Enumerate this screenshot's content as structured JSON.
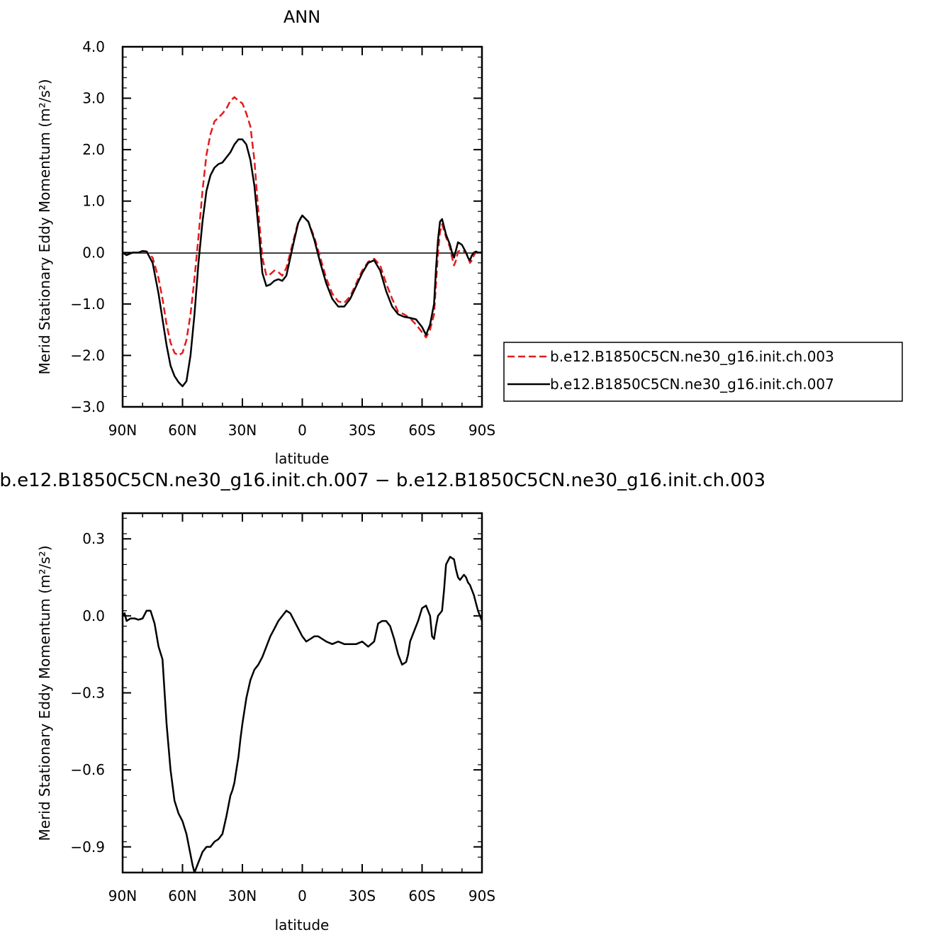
{
  "chart_data": [
    {
      "type": "line",
      "title": "ANN",
      "xlabel": "latitude",
      "ylabel": "Merid Stationary Eddy Momentum (m²/s²)",
      "xlim": [
        90,
        -90
      ],
      "ylim": [
        -3.0,
        4.0
      ],
      "x_ticks": [
        {
          "value": 90,
          "label": "90N"
        },
        {
          "value": 60,
          "label": "60N"
        },
        {
          "value": 30,
          "label": "30N"
        },
        {
          "value": 0,
          "label": "0"
        },
        {
          "value": -30,
          "label": "30S"
        },
        {
          "value": -60,
          "label": "60S"
        },
        {
          "value": -90,
          "label": "90S"
        }
      ],
      "y_ticks": [
        {
          "value": 4.0,
          "label": "4.0"
        },
        {
          "value": 3.0,
          "label": "3.0"
        },
        {
          "value": 2.0,
          "label": "2.0"
        },
        {
          "value": 1.0,
          "label": "1.0"
        },
        {
          "value": 0.0,
          "label": "0.0"
        },
        {
          "value": -1.0,
          "label": "−1.0"
        },
        {
          "value": -2.0,
          "label": "−2.0"
        },
        {
          "value": -3.0,
          "label": "−3.0"
        }
      ],
      "legend": {
        "placement": "right"
      },
      "series": [
        {
          "name": "b.e12.B1850C5CN.ne30_g16.init.ch.003",
          "color": "#e41a1c",
          "dash": "dashed",
          "x": [
            90,
            88,
            85,
            82,
            80,
            78,
            75,
            72,
            70,
            68,
            66,
            64,
            62,
            60,
            58,
            56,
            54,
            52,
            50,
            48,
            46,
            44,
            42,
            40,
            38,
            36,
            34,
            32,
            30,
            28,
            26,
            24,
            22,
            20,
            18,
            16,
            14,
            12,
            10,
            8,
            6,
            4,
            2,
            0,
            -3,
            -6,
            -9,
            -12,
            -15,
            -18,
            -21,
            -24,
            -27,
            -30,
            -33,
            -36,
            -39,
            -42,
            -45,
            -48,
            -51,
            -54,
            -57,
            -60,
            -62,
            -64,
            -66,
            -67,
            -68,
            -69,
            -70,
            -72,
            -74,
            -75,
            -76,
            -77,
            -78,
            -80,
            -82,
            -83,
            -84,
            -85,
            -86,
            -87,
            -88,
            -89,
            -90
          ],
          "y": [
            0.0,
            -0.05,
            0.0,
            0.0,
            0.02,
            0.02,
            -0.1,
            -0.5,
            -0.9,
            -1.4,
            -1.75,
            -1.95,
            -2.0,
            -1.95,
            -1.7,
            -1.2,
            -0.5,
            0.3,
            1.2,
            1.9,
            2.3,
            2.55,
            2.62,
            2.7,
            2.8,
            2.95,
            3.02,
            2.95,
            2.9,
            2.7,
            2.45,
            1.8,
            0.8,
            -0.1,
            -0.45,
            -0.42,
            -0.35,
            -0.38,
            -0.45,
            -0.3,
            0.0,
            0.3,
            0.6,
            0.72,
            0.6,
            0.3,
            -0.1,
            -0.5,
            -0.8,
            -0.95,
            -0.98,
            -0.85,
            -0.6,
            -0.35,
            -0.18,
            -0.12,
            -0.25,
            -0.6,
            -0.9,
            -1.15,
            -1.2,
            -1.28,
            -1.4,
            -1.55,
            -1.65,
            -1.5,
            -1.2,
            -0.6,
            0.0,
            0.4,
            0.55,
            0.3,
            0.1,
            -0.1,
            -0.25,
            -0.15,
            0.02,
            0.05,
            0.0,
            -0.1,
            -0.2,
            -0.15,
            -0.05,
            0.0,
            0.02,
            0.0,
            0.0
          ]
        },
        {
          "name": "b.e12.B1850C5CN.ne30_g16.init.ch.007",
          "color": "#000000",
          "dash": "solid",
          "x": [
            90,
            88,
            85,
            82,
            80,
            78,
            75,
            72,
            70,
            68,
            66,
            64,
            62,
            60,
            58,
            56,
            54,
            52,
            50,
            48,
            46,
            44,
            42,
            40,
            38,
            36,
            34,
            32,
            30,
            28,
            26,
            24,
            22,
            20,
            18,
            16,
            14,
            12,
            10,
            8,
            6,
            4,
            2,
            0,
            -3,
            -6,
            -9,
            -12,
            -15,
            -18,
            -21,
            -24,
            -27,
            -30,
            -33,
            -36,
            -39,
            -42,
            -45,
            -48,
            -51,
            -54,
            -57,
            -60,
            -62,
            -64,
            -66,
            -67,
            -68,
            -69,
            -70,
            -72,
            -74,
            -75,
            -76,
            -77,
            -78,
            -80,
            -82,
            -83,
            -84,
            -85,
            -86,
            -87,
            -88,
            -89,
            -90
          ],
          "y": [
            0.0,
            -0.05,
            0.0,
            0.0,
            0.03,
            0.02,
            -0.2,
            -0.8,
            -1.3,
            -1.8,
            -2.2,
            -2.4,
            -2.52,
            -2.6,
            -2.5,
            -2.0,
            -1.2,
            -0.2,
            0.6,
            1.2,
            1.5,
            1.65,
            1.72,
            1.75,
            1.85,
            1.95,
            2.1,
            2.2,
            2.2,
            2.1,
            1.8,
            1.3,
            0.5,
            -0.4,
            -0.65,
            -0.62,
            -0.55,
            -0.52,
            -0.55,
            -0.45,
            -0.1,
            0.25,
            0.58,
            0.72,
            0.6,
            0.25,
            -0.2,
            -0.6,
            -0.9,
            -1.05,
            -1.05,
            -0.9,
            -0.65,
            -0.4,
            -0.2,
            -0.15,
            -0.35,
            -0.75,
            -1.05,
            -1.2,
            -1.25,
            -1.27,
            -1.3,
            -1.45,
            -1.6,
            -1.4,
            -1.0,
            -0.3,
            0.25,
            0.6,
            0.65,
            0.35,
            0.15,
            0.0,
            -0.1,
            0.05,
            0.2,
            0.15,
            0.0,
            -0.1,
            -0.15,
            -0.05,
            0.0,
            0.02,
            0.0,
            0.0,
            0.0
          ]
        }
      ]
    },
    {
      "type": "line",
      "title": "b.e12.B1850C5CN.ne30_g16.init.ch.007 − b.e12.B1850C5CN.ne30_g16.init.ch.003",
      "xlabel": "latitude",
      "ylabel": "Merid Stationary Eddy Momentum (m²/s²)",
      "xlim": [
        90,
        -90
      ],
      "ylim": [
        -1.0,
        0.4
      ],
      "x_ticks": [
        {
          "value": 90,
          "label": "90N"
        },
        {
          "value": 60,
          "label": "60N"
        },
        {
          "value": 30,
          "label": "30N"
        },
        {
          "value": 0,
          "label": "0"
        },
        {
          "value": -30,
          "label": "30S"
        },
        {
          "value": -60,
          "label": "60S"
        },
        {
          "value": -90,
          "label": "90S"
        }
      ],
      "y_ticks": [
        {
          "value": 0.3,
          "label": "0.3"
        },
        {
          "value": 0.0,
          "label": "0.0"
        },
        {
          "value": -0.3,
          "label": "−0.3"
        },
        {
          "value": -0.6,
          "label": "−0.6"
        },
        {
          "value": -0.9,
          "label": "−0.9"
        }
      ],
      "series": [
        {
          "color": "#000000",
          "dash": "solid",
          "x": [
            90,
            89,
            88,
            86,
            84,
            82,
            80,
            78,
            76,
            74,
            72,
            70,
            68,
            66,
            64,
            62,
            60,
            58,
            56,
            55,
            54,
            53,
            52,
            51,
            50,
            48,
            46,
            44,
            42,
            40,
            38,
            36,
            35,
            34,
            33,
            32,
            31,
            30,
            28,
            26,
            24,
            22,
            20,
            18,
            16,
            14,
            12,
            10,
            8,
            6,
            4,
            2,
            0,
            -2,
            -4,
            -6,
            -8,
            -10,
            -12,
            -15,
            -18,
            -21,
            -24,
            -27,
            -30,
            -33,
            -36,
            -38,
            -40,
            -42,
            -44,
            -46,
            -48,
            -50,
            -52,
            -53,
            -54,
            -56,
            -58,
            -60,
            -62,
            -64,
            -65,
            -66,
            -67,
            -68,
            -70,
            -71,
            -72,
            -74,
            -76,
            -77,
            -78,
            -79,
            -80,
            -81,
            -82,
            -83,
            -84,
            -85,
            -86,
            -87,
            -88,
            -89,
            -90
          ],
          "y": [
            0.0,
            0.01,
            -0.02,
            -0.01,
            -0.01,
            -0.015,
            -0.01,
            0.02,
            0.02,
            -0.03,
            -0.12,
            -0.17,
            -0.42,
            -0.6,
            -0.72,
            -0.77,
            -0.8,
            -0.85,
            -0.93,
            -0.97,
            -1.0,
            -0.98,
            -0.96,
            -0.94,
            -0.92,
            -0.9,
            -0.9,
            -0.88,
            -0.87,
            -0.85,
            -0.78,
            -0.7,
            -0.68,
            -0.65,
            -0.6,
            -0.55,
            -0.48,
            -0.42,
            -0.32,
            -0.25,
            -0.21,
            -0.19,
            -0.16,
            -0.12,
            -0.08,
            -0.05,
            -0.02,
            0.0,
            0.02,
            0.01,
            -0.02,
            -0.05,
            -0.08,
            -0.1,
            -0.09,
            -0.08,
            -0.08,
            -0.09,
            -0.1,
            -0.11,
            -0.1,
            -0.11,
            -0.11,
            -0.11,
            -0.1,
            -0.12,
            -0.1,
            -0.03,
            -0.02,
            -0.02,
            -0.04,
            -0.09,
            -0.15,
            -0.19,
            -0.18,
            -0.15,
            -0.1,
            -0.06,
            -0.02,
            0.03,
            0.04,
            0.0,
            -0.08,
            -0.09,
            -0.04,
            0.0,
            0.02,
            0.1,
            0.2,
            0.23,
            0.22,
            0.18,
            0.15,
            0.14,
            0.15,
            0.16,
            0.15,
            0.13,
            0.12,
            0.1,
            0.08,
            0.05,
            0.02,
            0.0,
            -0.02
          ]
        }
      ]
    }
  ]
}
